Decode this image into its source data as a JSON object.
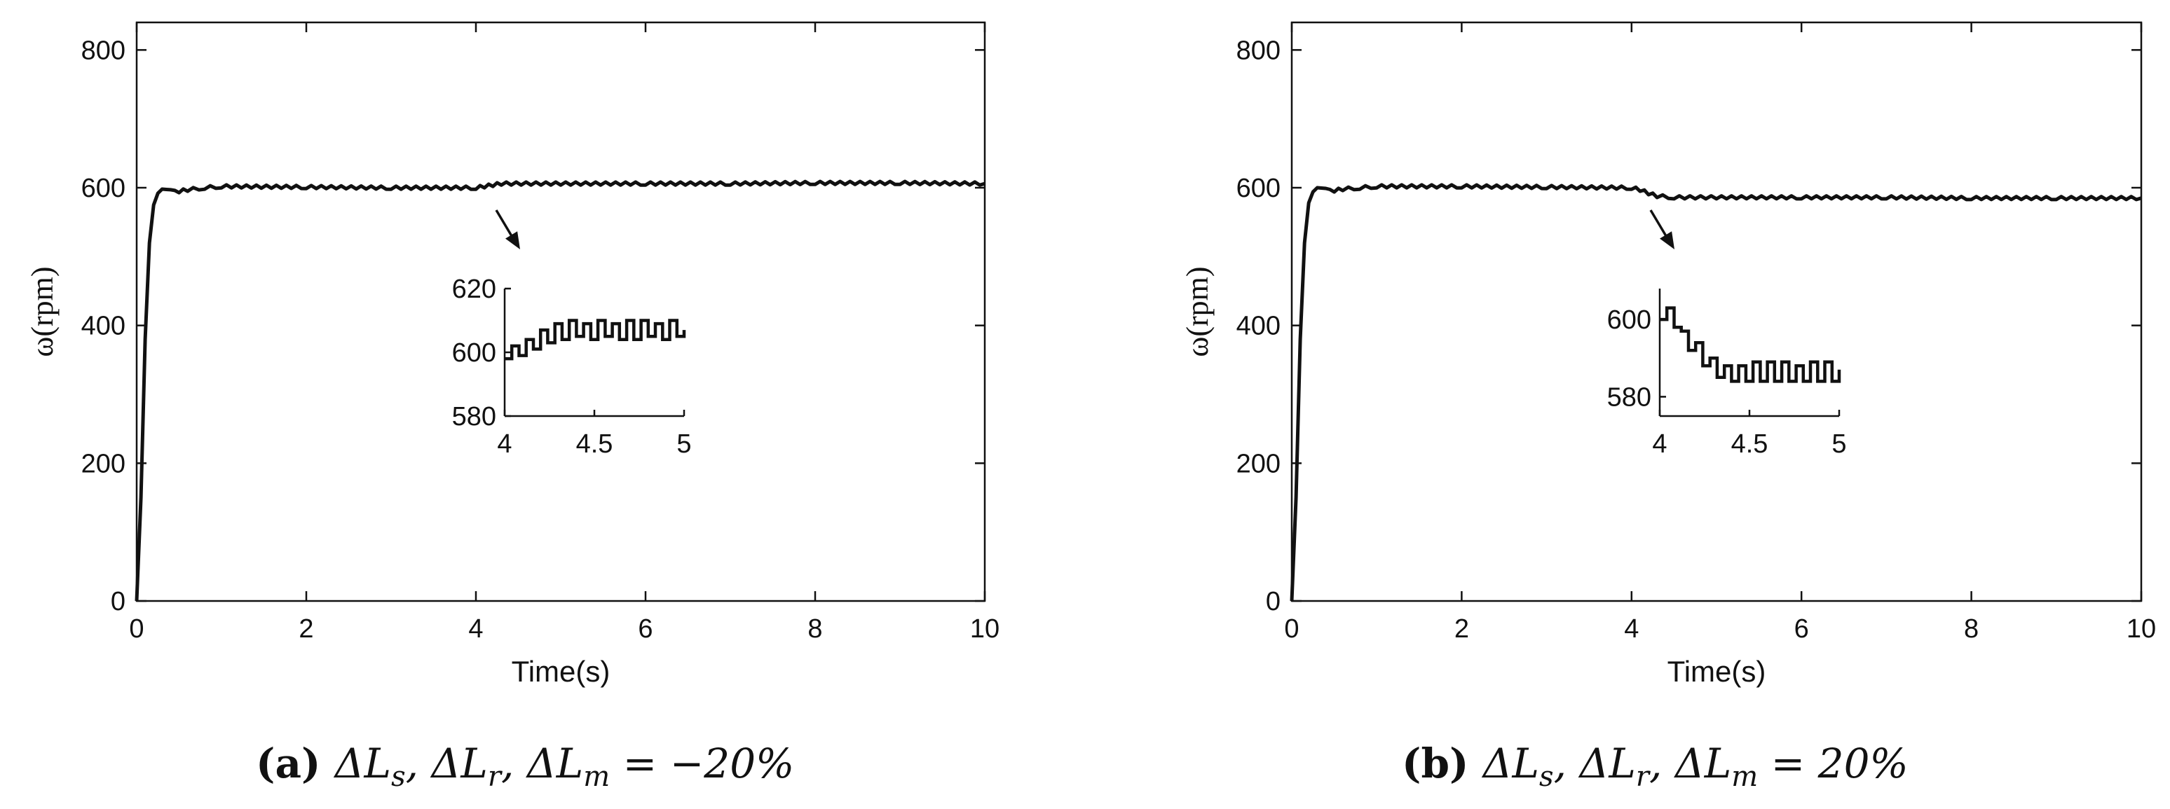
{
  "chart_data": [
    {
      "type": "line",
      "panel": "a",
      "xlabel": "Time(s)",
      "ylabel": "ω(rpm)",
      "xlim": [
        0,
        10
      ],
      "ylim": [
        0,
        840
      ],
      "x_ticks": [
        0,
        2,
        4,
        6,
        8,
        10
      ],
      "y_ticks": [
        0,
        200,
        400,
        600,
        800
      ],
      "caption": {
        "label": "(a)",
        "symbols": [
          "ΔL",
          "s",
          ", ΔL",
          "r",
          ", ΔL",
          "m",
          " = −20%"
        ]
      },
      "series": [
        {
          "x": [
            0,
            0.05,
            0.1,
            0.15,
            0.2,
            0.25,
            0.3,
            0.4,
            0.5,
            0.6,
            0.8,
            1.0,
            2.0,
            3.0,
            4.0,
            4.1,
            4.2,
            4.3,
            5.0,
            6.0,
            7.0,
            8.0,
            9.0,
            10.0
          ],
          "y": [
            0,
            150,
            380,
            520,
            575,
            592,
            598,
            597,
            595,
            597,
            600,
            602,
            601,
            600,
            600,
            602,
            604,
            606,
            606,
            606,
            606,
            607,
            607,
            606
          ]
        }
      ],
      "inset": {
        "xlim": [
          4,
          5
        ],
        "ylim": [
          580,
          620
        ],
        "x_ticks": [
          "4",
          "4.5",
          "5"
        ],
        "y_ticks": [
          "580",
          "600",
          "620"
        ],
        "series": {
          "x": [
            4.0,
            4.04,
            4.08,
            4.12,
            4.16,
            4.2,
            4.24,
            4.28,
            4.32,
            4.36,
            4.4,
            4.44,
            4.48,
            4.52,
            4.56,
            4.6,
            4.64,
            4.68,
            4.72,
            4.76,
            4.8,
            4.84,
            4.88,
            4.92,
            4.96,
            5.0
          ],
          "y": [
            598,
            602,
            599,
            604,
            601,
            607,
            603,
            609,
            604,
            610,
            605,
            609,
            604,
            610,
            605,
            609,
            604,
            610,
            604,
            610,
            605,
            609,
            604,
            610,
            605,
            607
          ]
        }
      }
    },
    {
      "type": "line",
      "panel": "b",
      "xlabel": "Time(s)",
      "ylabel": "ω(rpm)",
      "xlim": [
        0,
        10
      ],
      "ylim": [
        0,
        840
      ],
      "x_ticks": [
        0,
        2,
        4,
        6,
        8,
        10
      ],
      "y_ticks": [
        0,
        200,
        400,
        600,
        800
      ],
      "caption": {
        "label": "(b)",
        "symbols": [
          "ΔL",
          "s",
          ", ΔL",
          "r",
          ", ΔL",
          "m",
          " = 20%"
        ]
      },
      "series": [
        {
          "x": [
            0,
            0.05,
            0.1,
            0.15,
            0.2,
            0.25,
            0.3,
            0.4,
            0.5,
            0.6,
            0.8,
            1.0,
            2.0,
            3.0,
            4.0,
            4.1,
            4.2,
            4.3,
            4.5,
            5.0,
            6.0,
            7.0,
            8.0,
            9.0,
            10.0
          ],
          "y": [
            0,
            150,
            380,
            520,
            578,
            594,
            600,
            599,
            596,
            598,
            600,
            602,
            602,
            601,
            600,
            597,
            592,
            588,
            586,
            586,
            586,
            586,
            585,
            585,
            585
          ]
        }
      ],
      "inset": {
        "xlim": [
          4,
          5
        ],
        "ylim": [
          575,
          608
        ],
        "x_ticks": [
          "4",
          "4.5",
          "5"
        ],
        "y_ticks": [
          "580",
          "600"
        ],
        "series": {
          "x": [
            4.0,
            4.04,
            4.08,
            4.12,
            4.16,
            4.2,
            4.24,
            4.28,
            4.32,
            4.36,
            4.4,
            4.44,
            4.48,
            4.52,
            4.56,
            4.6,
            4.64,
            4.68,
            4.72,
            4.76,
            4.8,
            4.84,
            4.88,
            4.92,
            4.96,
            5.0
          ],
          "y": [
            600,
            603,
            598,
            597,
            592,
            594,
            588,
            590,
            585,
            588,
            584,
            588,
            584,
            589,
            584,
            589,
            584,
            589,
            584,
            588,
            584,
            589,
            584,
            589,
            584,
            587
          ]
        }
      }
    }
  ]
}
